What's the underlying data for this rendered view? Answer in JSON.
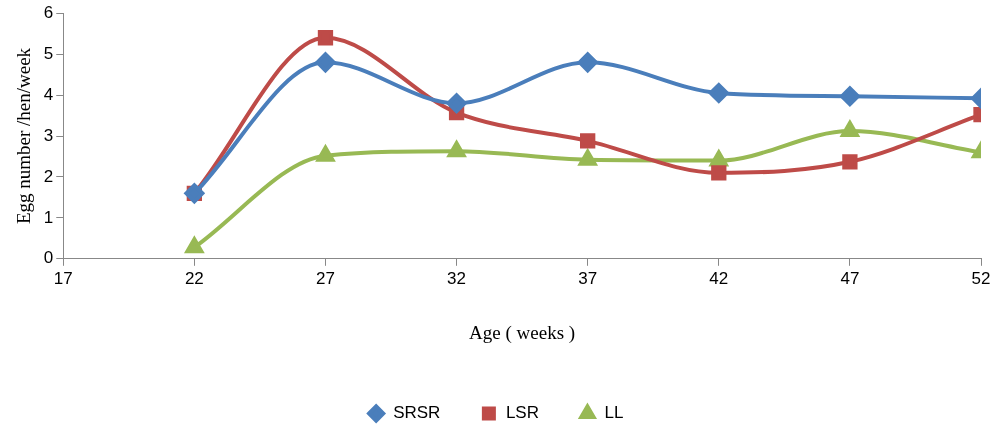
{
  "chart_data": {
    "type": "line",
    "xlabel": "Age ( weeks )",
    "ylabel": "Egg number /hen/week",
    "x": [
      22,
      27,
      32,
      37,
      42,
      47,
      52
    ],
    "series": [
      {
        "name": "SRSR",
        "color": "#4a7ebb",
        "marker": "diamond",
        "values": [
          1.6,
          4.8,
          3.8,
          4.8,
          4.05,
          3.97,
          3.92
        ]
      },
      {
        "name": "LSR",
        "color": "#be4b48",
        "marker": "square",
        "values": [
          1.6,
          5.4,
          3.57,
          2.88,
          2.1,
          2.37,
          3.52
        ]
      },
      {
        "name": "LL",
        "color": "#98b954",
        "marker": "triangle",
        "values": [
          0.28,
          2.52,
          2.63,
          2.42,
          2.4,
          3.12,
          2.6
        ]
      }
    ],
    "xlim": [
      17,
      52
    ],
    "xticks": [
      17,
      22,
      27,
      32,
      37,
      42,
      47,
      52
    ],
    "ylim": [
      0,
      6
    ],
    "yticks": [
      0,
      1,
      2,
      3,
      4,
      5,
      6
    ],
    "grid": false,
    "legend": "bottom"
  }
}
